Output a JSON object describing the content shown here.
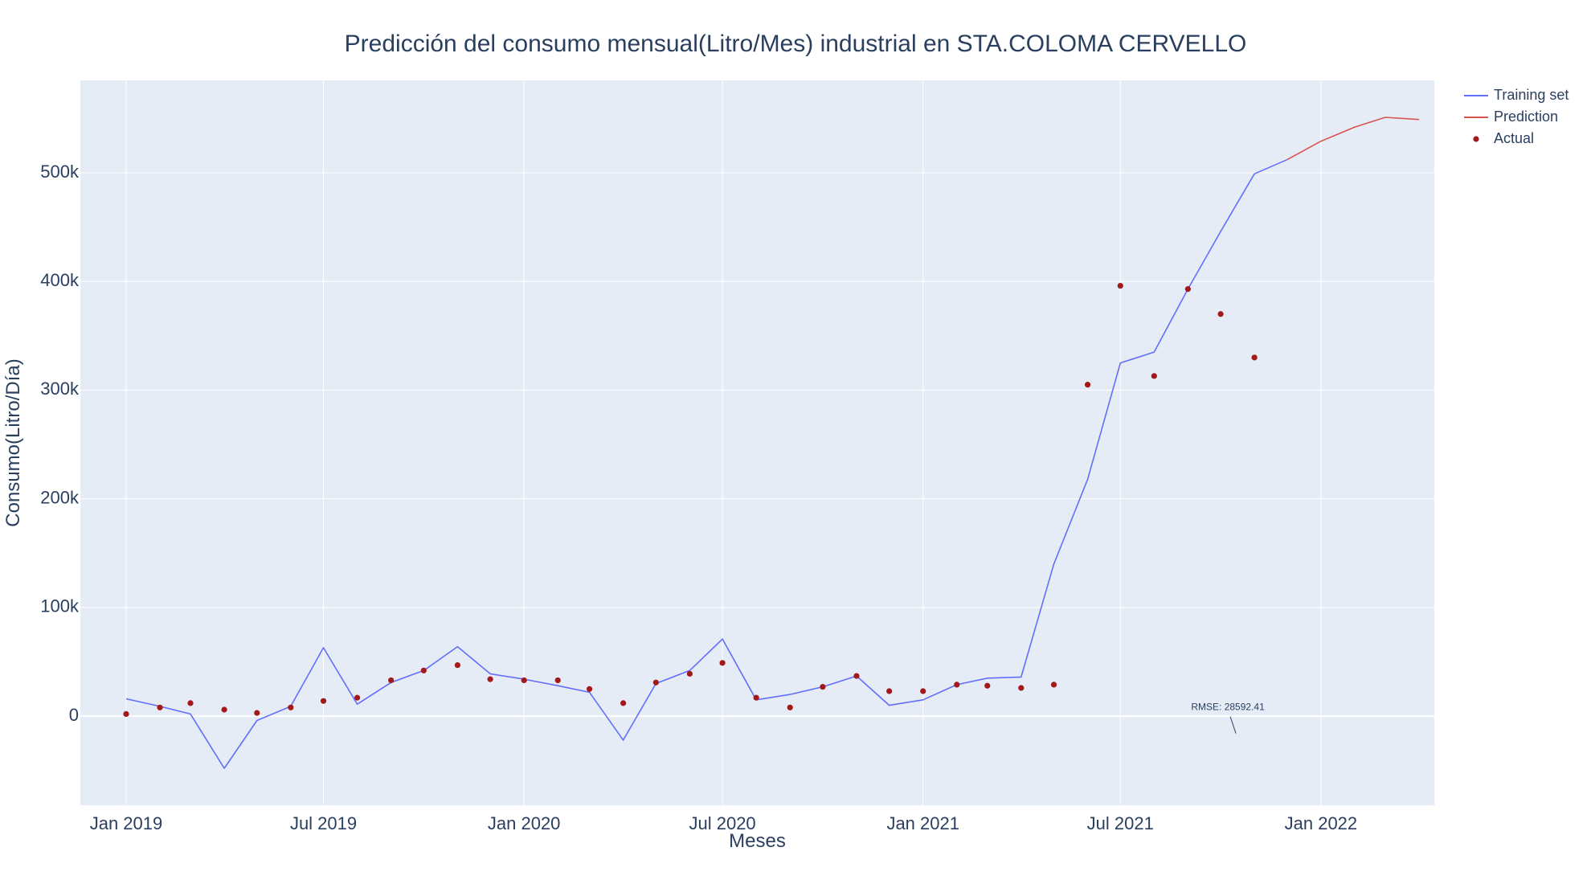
{
  "chart_data": {
    "type": "line",
    "title": "Predicción del consumo mensual(Litro/Mes) industrial en STA.COLOMA CERVELLO",
    "xlabel": "Meses",
    "ylabel": "Consumo(Litro/Día)",
    "x_ticks": [
      "2019-01-01",
      "2019-07-01",
      "2020-01-01",
      "2020-07-01",
      "2021-01-01",
      "2021-07-01",
      "2022-01-01"
    ],
    "x_tick_labels": [
      "Jan 2019",
      "Jul 2019",
      "Jan 2020",
      "Jul 2020",
      "Jan 2021",
      "Jul 2021",
      "Jan 2022"
    ],
    "y_ticks": [
      0,
      100000,
      200000,
      300000,
      400000,
      500000
    ],
    "y_tick_labels": [
      "0",
      "100k",
      "200k",
      "300k",
      "400k",
      "500k"
    ],
    "xlim": [
      "2018-11-20",
      "2022-04-15"
    ],
    "ylim": [
      -82000,
      585000
    ],
    "grid": true,
    "legend_position": "top-right",
    "annotation": {
      "text": "RMSE: 28592.41",
      "x": "2021-10-15",
      "y": 7000
    },
    "colors": {
      "plot_bg": "#e5ecf6",
      "grid": "#ffffff",
      "training": "#636efa",
      "prediction": "#d9534f",
      "actual": "#a31919",
      "text": "#2a3f5f"
    },
    "series": [
      {
        "name": "Training set",
        "mode": "line",
        "color": "#636efa",
        "x": [
          "2019-01-01",
          "2019-02-01",
          "2019-03-01",
          "2019-04-01",
          "2019-05-01",
          "2019-06-01",
          "2019-07-01",
          "2019-08-01",
          "2019-09-01",
          "2019-10-01",
          "2019-11-01",
          "2019-12-01",
          "2020-01-01",
          "2020-02-01",
          "2020-03-01",
          "2020-04-01",
          "2020-05-01",
          "2020-06-01",
          "2020-07-01",
          "2020-08-01",
          "2020-09-01",
          "2020-10-01",
          "2020-11-01",
          "2020-12-01",
          "2021-01-01",
          "2021-02-01",
          "2021-03-01",
          "2021-04-01",
          "2021-05-01",
          "2021-06-01",
          "2021-07-01",
          "2021-08-01",
          "2021-09-01",
          "2021-10-01",
          "2021-11-01",
          "2021-12-01"
        ],
        "y": [
          16000,
          9000,
          2000,
          -48000,
          -4000,
          9000,
          63000,
          11000,
          31000,
          42000,
          64000,
          39000,
          34000,
          28000,
          22000,
          -22000,
          30000,
          42000,
          71000,
          15000,
          20000,
          27000,
          37000,
          10000,
          15000,
          29000,
          35000,
          36000,
          140000,
          218000,
          325000,
          335000,
          393000,
          446000,
          499000,
          512000
        ]
      },
      {
        "name": "Prediction",
        "mode": "line",
        "color": "#d9534f",
        "x": [
          "2021-12-01",
          "2022-01-01",
          "2022-02-01",
          "2022-03-01",
          "2022-04-01"
        ],
        "y": [
          512000,
          529000,
          542000,
          551000,
          549000
        ]
      },
      {
        "name": "Actual",
        "mode": "markers",
        "color": "#a31919",
        "x": [
          "2019-01-01",
          "2019-02-01",
          "2019-03-01",
          "2019-04-01",
          "2019-05-01",
          "2019-06-01",
          "2019-07-01",
          "2019-08-01",
          "2019-09-01",
          "2019-10-01",
          "2019-11-01",
          "2019-12-01",
          "2020-01-01",
          "2020-02-01",
          "2020-03-01",
          "2020-04-01",
          "2020-05-01",
          "2020-06-01",
          "2020-07-01",
          "2020-08-01",
          "2020-09-01",
          "2020-10-01",
          "2020-11-01",
          "2020-12-01",
          "2021-01-01",
          "2021-02-01",
          "2021-03-01",
          "2021-04-01",
          "2021-05-01",
          "2021-06-01",
          "2021-07-01",
          "2021-08-01",
          "2021-09-01",
          "2021-10-01",
          "2021-11-01"
        ],
        "y": [
          2000,
          8000,
          12000,
          6000,
          3000,
          8000,
          14000,
          17000,
          33000,
          42000,
          47000,
          34000,
          33000,
          33000,
          25000,
          12000,
          31000,
          39000,
          49000,
          17000,
          8000,
          27000,
          37000,
          23000,
          23000,
          29000,
          28000,
          26000,
          29000,
          305000,
          396000,
          313000,
          393000,
          370000,
          330000
        ]
      }
    ]
  }
}
